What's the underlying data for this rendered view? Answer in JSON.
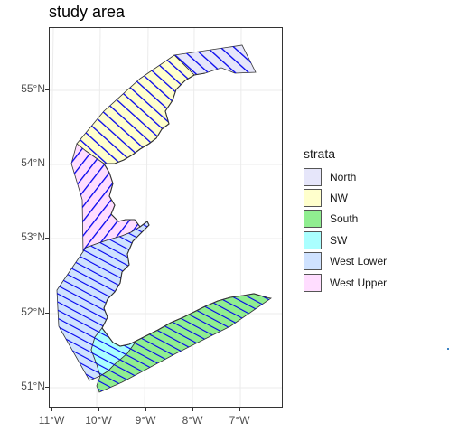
{
  "title": "study area",
  "axes": {
    "y_ticks": [
      "55°N",
      "54°N",
      "53°N",
      "52°N",
      "51°N"
    ],
    "x_ticks": [
      "11°W",
      "10°W",
      "9°W",
      "8°W",
      "7°W"
    ]
  },
  "legend": {
    "title": "strata",
    "items": [
      {
        "label": "North",
        "color": "#e6e6fa"
      },
      {
        "label": "NW",
        "color": "#ffffcc"
      },
      {
        "label": "South",
        "color": "#90ee90"
      },
      {
        "label": "SW",
        "color": "#aaffff"
      },
      {
        "label": "West Lower",
        "color": "#cfe2ff"
      },
      {
        "label": "West Upper",
        "color": "#ffddff"
      }
    ]
  },
  "colors": {
    "hatch": "#0000ee",
    "outline": "#333333",
    "grid": "#ebebeb"
  }
}
